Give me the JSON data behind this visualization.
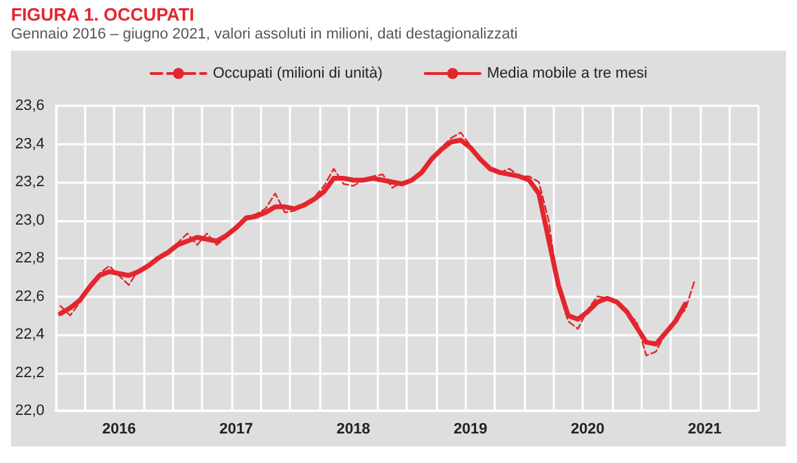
{
  "chart_data": {
    "type": "line",
    "title": "FIGURA 1. OCCUPATI",
    "subtitle": "Gennaio 2016 – giugno 2021, valori assoluti in milioni, dati destagionalizzati",
    "categories": [
      null,
      null,
      null,
      null,
      null,
      null,
      "2016",
      null,
      null,
      null,
      null,
      null,
      null,
      null,
      null,
      null,
      null,
      null,
      "2017",
      null,
      null,
      null,
      null,
      null,
      null,
      null,
      null,
      null,
      null,
      null,
      "2018",
      null,
      null,
      null,
      null,
      null,
      null,
      null,
      null,
      null,
      null,
      null,
      "2019",
      null,
      null,
      null,
      null,
      null,
      null,
      null,
      null,
      null,
      null,
      null,
      "2020",
      null,
      null,
      null,
      null,
      null,
      null,
      null,
      null,
      null,
      null,
      null,
      "2021",
      null,
      null,
      null,
      null,
      null
    ],
    "series": [
      {
        "name": "Occupati (milioni di unità)",
        "color": "#e3262e",
        "line_style": "dashed",
        "values": [
          22.55,
          22.5,
          22.57,
          22.65,
          22.72,
          22.76,
          22.71,
          22.66,
          22.74,
          22.77,
          22.81,
          22.84,
          22.88,
          22.93,
          22.87,
          22.93,
          22.87,
          22.91,
          22.97,
          23.02,
          23.03,
          23.06,
          23.14,
          23.04,
          23.05,
          23.09,
          23.12,
          23.18,
          23.27,
          23.19,
          23.18,
          23.21,
          23.23,
          23.24,
          23.17,
          23.2,
          23.21,
          23.25,
          23.33,
          23.38,
          23.43,
          23.46,
          23.39,
          23.31,
          23.26,
          23.25,
          23.27,
          23.23,
          23.23,
          23.2,
          23.0,
          22.64,
          22.47,
          22.43,
          22.53,
          22.6,
          22.59,
          22.57,
          22.51,
          22.47,
          22.29,
          22.31,
          22.41,
          22.48,
          22.53,
          22.69,
          null,
          null,
          null,
          null,
          null,
          null
        ]
      },
      {
        "name": "Media mobile a tre mesi",
        "color": "#e3262e",
        "line_style": "solid",
        "values": [
          22.51,
          22.54,
          22.58,
          22.65,
          22.71,
          22.73,
          22.72,
          22.71,
          22.73,
          22.76,
          22.8,
          22.83,
          22.87,
          22.89,
          22.91,
          22.9,
          22.89,
          22.92,
          22.96,
          23.01,
          23.02,
          23.04,
          23.07,
          23.07,
          23.06,
          23.08,
          23.11,
          23.15,
          23.22,
          23.22,
          23.21,
          23.21,
          23.22,
          23.21,
          23.2,
          23.19,
          23.21,
          23.25,
          23.32,
          23.37,
          23.41,
          23.42,
          23.38,
          23.32,
          23.27,
          23.25,
          23.24,
          23.23,
          23.21,
          23.14,
          22.9,
          22.66,
          22.5,
          22.48,
          22.52,
          22.57,
          22.59,
          22.57,
          22.52,
          22.44,
          22.36,
          22.35,
          22.41,
          22.47,
          22.56,
          null,
          null,
          null,
          null,
          null,
          null,
          null
        ]
      }
    ],
    "ylim": [
      22.0,
      23.6
    ],
    "yticks": [
      {
        "value": 22.0,
        "label": "22,0"
      },
      {
        "value": 22.2,
        "label": "22,2"
      },
      {
        "value": 22.4,
        "label": "22,4"
      },
      {
        "value": 22.6,
        "label": "22,6"
      },
      {
        "value": 22.8,
        "label": "22,8"
      },
      {
        "value": 23.0,
        "label": "23,0"
      },
      {
        "value": 23.2,
        "label": "23,2"
      },
      {
        "value": 23.4,
        "label": "23,4"
      },
      {
        "value": 23.6,
        "label": "23,6"
      }
    ],
    "grid": true,
    "legend": "top",
    "marker": "none"
  }
}
